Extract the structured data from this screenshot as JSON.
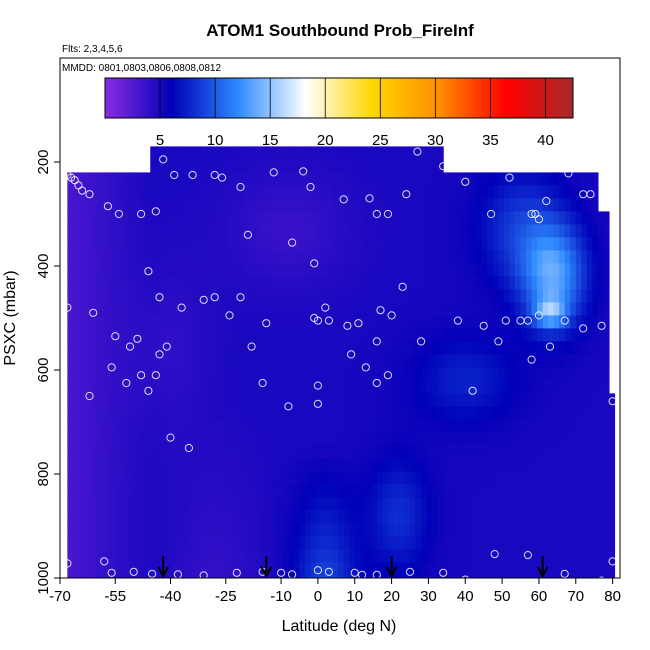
{
  "chart_data": {
    "type": "heatmap",
    "title": "ATOM1 Southbound Prob_FireInf",
    "subtitle_flights": "Flts: 2,3,4,5,6",
    "subtitle_dates": "MMDD: 0801,0803,0806,0808,0812",
    "xlabel": "Latitude (deg N)",
    "ylabel": "PSXC (mbar)",
    "xlim": [
      -70,
      82
    ],
    "ylim": [
      1000,
      0
    ],
    "x_ticks": [
      -70,
      -55,
      -40,
      -25,
      -10,
      0,
      10,
      20,
      30,
      40,
      50,
      60,
      70,
      80
    ],
    "x_tick_labels": [
      "-70",
      "-55",
      "-40",
      "-25",
      "-10",
      "0",
      "10",
      "20",
      "30",
      "40",
      "50",
      "60",
      "70",
      "80"
    ],
    "y_ticks": [
      200,
      400,
      600,
      800,
      1000
    ],
    "y_tick_labels": [
      "200",
      "400",
      "600",
      "800",
      "1000"
    ],
    "colorbar": {
      "range": [
        0,
        42.5
      ],
      "ticks": [
        5,
        10,
        15,
        20,
        25,
        30,
        35,
        40
      ],
      "tick_labels": [
        "5",
        "10",
        "15",
        "20",
        "25",
        "30",
        "35",
        "40"
      ],
      "colormap": [
        "#8a2be2",
        "#0000b8",
        "#2e8bff",
        "#ffffff",
        "#ffd700",
        "#ff8c00",
        "#ff0000",
        "#a52a2a"
      ]
    },
    "pressure_levels": [
      200,
      250,
      300,
      350,
      400,
      450,
      500,
      550,
      600,
      650,
      700,
      750,
      800,
      850,
      900,
      950,
      1000
    ],
    "grid": false,
    "field_note": "values estimated from colors; field: Prob_FireInf percent",
    "samples": [
      [
        -68,
        225
      ],
      [
        -67,
        230
      ],
      [
        -66,
        235
      ],
      [
        -65,
        245
      ],
      [
        -64,
        255
      ],
      [
        -62,
        262
      ],
      [
        -57,
        285
      ],
      [
        -54,
        300
      ],
      [
        -48,
        300
      ],
      [
        -44,
        295
      ],
      [
        -42,
        195
      ],
      [
        -39,
        225
      ],
      [
        -34,
        225
      ],
      [
        -28,
        225
      ],
      [
        -26,
        230
      ],
      [
        -21,
        248
      ],
      [
        -12,
        220
      ],
      [
        -4,
        218
      ],
      [
        -2,
        248
      ],
      [
        7,
        272
      ],
      [
        14,
        270
      ],
      [
        16,
        300
      ],
      [
        19,
        300
      ],
      [
        24,
        262
      ],
      [
        27,
        180
      ],
      [
        34,
        208
      ],
      [
        40,
        238
      ],
      [
        47,
        300
      ],
      [
        52,
        230
      ],
      [
        58,
        300
      ],
      [
        59,
        300
      ],
      [
        60,
        310
      ],
      [
        62,
        275
      ],
      [
        68,
        222
      ],
      [
        72,
        262
      ],
      [
        74,
        262
      ],
      [
        -19,
        340
      ],
      [
        -7,
        355
      ],
      [
        -1,
        395
      ],
      [
        -46,
        410
      ],
      [
        -68,
        480
      ],
      [
        -61,
        490
      ],
      [
        -55,
        535
      ],
      [
        -51,
        555
      ],
      [
        -49,
        540
      ],
      [
        -43,
        460
      ],
      [
        -41,
        555
      ],
      [
        -48,
        610
      ],
      [
        -43,
        570
      ],
      [
        -37,
        480
      ],
      [
        -31,
        465
      ],
      [
        -28,
        460
      ],
      [
        -21,
        460
      ],
      [
        -18,
        555
      ],
      [
        -14,
        510
      ],
      [
        -15,
        625
      ],
      [
        -1,
        500
      ],
      [
        0,
        505
      ],
      [
        3,
        505
      ],
      [
        8,
        515
      ],
      [
        9,
        570
      ],
      [
        11,
        510
      ],
      [
        13,
        595
      ],
      [
        16,
        545
      ],
      [
        17,
        485
      ],
      [
        16,
        625
      ],
      [
        19,
        610
      ],
      [
        20,
        495
      ],
      [
        23,
        440
      ],
      [
        28,
        545
      ],
      [
        38,
        505
      ],
      [
        42,
        640
      ],
      [
        45,
        515
      ],
      [
        49,
        545
      ],
      [
        51,
        505
      ],
      [
        55,
        505
      ],
      [
        57,
        505
      ],
      [
        58,
        580
      ],
      [
        60,
        495
      ],
      [
        63,
        555
      ],
      [
        67,
        505
      ],
      [
        72,
        520
      ],
      [
        77,
        515
      ],
      [
        80,
        660
      ],
      [
        -56,
        595
      ],
      [
        -52,
        625
      ],
      [
        -44,
        610
      ],
      [
        -24,
        495
      ],
      [
        -8,
        670
      ],
      [
        0,
        665
      ],
      [
        0,
        630
      ],
      [
        2,
        480
      ],
      [
        -46,
        640
      ],
      [
        -62,
        650
      ],
      [
        -35,
        750
      ],
      [
        -40,
        730
      ],
      [
        -68,
        972
      ],
      [
        -58,
        968
      ],
      [
        -56,
        990
      ],
      [
        -50,
        988
      ],
      [
        -45,
        992
      ],
      [
        -38,
        993
      ],
      [
        -31,
        995
      ],
      [
        -22,
        990
      ],
      [
        -15,
        988
      ],
      [
        -10,
        990
      ],
      [
        -7,
        993
      ],
      [
        0,
        985
      ],
      [
        3,
        988
      ],
      [
        10,
        990
      ],
      [
        12,
        994
      ],
      [
        16,
        994
      ],
      [
        25,
        988
      ],
      [
        34,
        990
      ],
      [
        40,
        1003
      ],
      [
        48,
        954
      ],
      [
        57,
        956
      ],
      [
        67,
        992
      ],
      [
        80,
        968
      ],
      [
        77,
        1005
      ]
    ],
    "arrow_markers_lat": [
      -42,
      -14,
      20,
      61
    ],
    "series": []
  }
}
